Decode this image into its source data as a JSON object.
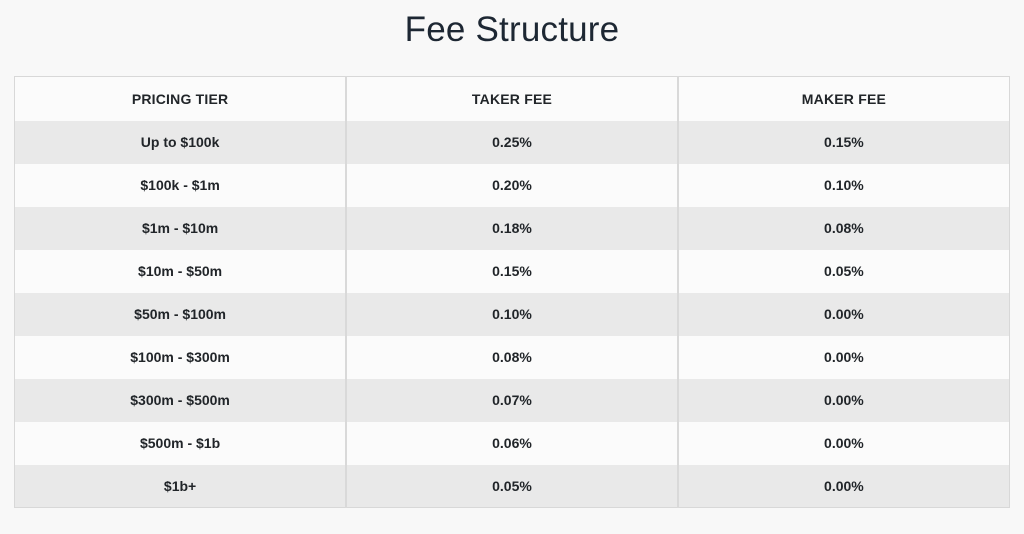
{
  "page": {
    "title": "Fee Structure",
    "background_color": "#f8f8f8",
    "stripe_color": "#e9e9e9",
    "row_color": "#fbfbfb",
    "border_color": "#d8d8d8",
    "text_color": "#212529"
  },
  "table": {
    "columns": [
      "PRICING TIER",
      "TAKER FEE",
      "MAKER FEE"
    ],
    "rows": [
      [
        "Up to $100k",
        "0.25%",
        "0.15%"
      ],
      [
        "$100k - $1m",
        "0.20%",
        "0.10%"
      ],
      [
        "$1m - $10m",
        "0.18%",
        "0.08%"
      ],
      [
        "$10m - $50m",
        "0.15%",
        "0.05%"
      ],
      [
        "$50m - $100m",
        "0.10%",
        "0.00%"
      ],
      [
        "$100m - $300m",
        "0.08%",
        "0.00%"
      ],
      [
        "$300m - $500m",
        "0.07%",
        "0.00%"
      ],
      [
        "$500m - $1b",
        "0.06%",
        "0.00%"
      ],
      [
        "$1b+",
        "0.05%",
        "0.00%"
      ]
    ]
  },
  "chart_data": {
    "type": "table",
    "title": "Fee Structure",
    "columns": [
      "PRICING TIER",
      "TAKER FEE",
      "MAKER FEE"
    ],
    "rows": [
      {
        "pricing_tier": "Up to $100k",
        "taker_fee": "0.25%",
        "maker_fee": "0.15%"
      },
      {
        "pricing_tier": "$100k - $1m",
        "taker_fee": "0.20%",
        "maker_fee": "0.10%"
      },
      {
        "pricing_tier": "$1m - $10m",
        "taker_fee": "0.18%",
        "maker_fee": "0.08%"
      },
      {
        "pricing_tier": "$10m - $50m",
        "taker_fee": "0.15%",
        "maker_fee": "0.05%"
      },
      {
        "pricing_tier": "$50m - $100m",
        "taker_fee": "0.10%",
        "maker_fee": "0.00%"
      },
      {
        "pricing_tier": "$100m - $300m",
        "taker_fee": "0.08%",
        "maker_fee": "0.00%"
      },
      {
        "pricing_tier": "$300m - $500m",
        "taker_fee": "0.07%",
        "maker_fee": "0.00%"
      },
      {
        "pricing_tier": "$500m - $1b",
        "taker_fee": "0.06%",
        "maker_fee": "0.00%"
      },
      {
        "pricing_tier": "$1b+",
        "taker_fee": "0.05%",
        "maker_fee": "0.00%"
      }
    ]
  }
}
